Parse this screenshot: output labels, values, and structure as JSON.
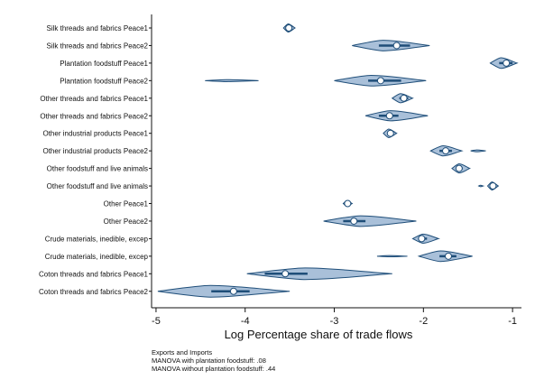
{
  "chart_data": {
    "type": "violin",
    "xlabel": "Log Percentage share of trade flows",
    "xlim": [
      -5.05,
      -0.9
    ],
    "xticks": [
      -5,
      -4,
      -3,
      -2,
      -1
    ],
    "xtick_labels": [
      "-5",
      "-4",
      "-3",
      "-2",
      "-1"
    ],
    "grid": false,
    "colors": {
      "fill": "#a9c0d9",
      "stroke": "#1f4e79",
      "median": "#ffffff"
    },
    "categories": [
      {
        "label": "Silk threads and fabrics Peace1",
        "median": -3.51,
        "q1": -3.54,
        "q3": -3.48,
        "segments": [
          [
            -3.57,
            -3.44,
            0.32
          ]
        ]
      },
      {
        "label": "Silk threads and fabrics Peace2",
        "median": -2.3,
        "q1": -2.5,
        "q3": -2.15,
        "segments": [
          [
            -2.8,
            -1.93,
            0.42
          ]
        ]
      },
      {
        "label": "Plantation foodstuff Peace1",
        "median": -1.07,
        "q1": -1.15,
        "q3": -1.0,
        "segments": [
          [
            -1.25,
            -0.95,
            0.42
          ]
        ]
      },
      {
        "label": "Plantation foodstuff Peace2",
        "median": -2.48,
        "q1": -2.62,
        "q3": -2.25,
        "segments": [
          [
            -4.45,
            -3.85,
            0.08
          ],
          [
            -3.0,
            -1.97,
            0.42
          ]
        ]
      },
      {
        "label": "Other threads and fabrics Peace1",
        "median": -2.22,
        "q1": -2.27,
        "q3": -2.17,
        "segments": [
          [
            -2.35,
            -2.12,
            0.36
          ]
        ]
      },
      {
        "label": "Other threads and fabrics Peace2",
        "median": -2.38,
        "q1": -2.5,
        "q3": -2.28,
        "segments": [
          [
            -2.65,
            -1.95,
            0.4
          ]
        ]
      },
      {
        "label": "Other industrial products Peace1",
        "median": -2.37,
        "q1": -2.4,
        "q3": -2.34,
        "segments": [
          [
            -2.45,
            -2.3,
            0.34
          ]
        ]
      },
      {
        "label": "Other industrial products Peace2",
        "median": -1.75,
        "q1": -1.82,
        "q3": -1.68,
        "segments": [
          [
            -1.92,
            -1.57,
            0.4
          ],
          [
            -1.47,
            -1.3,
            0.07
          ]
        ]
      },
      {
        "label": "Other foodstuff and live animals",
        "median": -1.6,
        "q1": -1.63,
        "q3": -1.56,
        "segments": [
          [
            -1.68,
            -1.48,
            0.36
          ]
        ]
      },
      {
        "label": "Other foodstuff and live animals",
        "median": -1.22,
        "q1": -1.24,
        "q3": -1.2,
        "segments": [
          [
            -1.38,
            -1.33,
            0.06
          ],
          [
            -1.28,
            -1.16,
            0.32
          ]
        ]
      },
      {
        "label": "Other Peace1",
        "median": -2.85,
        "q1": -2.87,
        "q3": -2.83,
        "segments": [
          [
            -2.9,
            -2.8,
            0.22
          ]
        ]
      },
      {
        "label": "Other Peace2",
        "median": -2.78,
        "q1": -2.9,
        "q3": -2.65,
        "segments": [
          [
            -3.12,
            -2.08,
            0.42
          ]
        ]
      },
      {
        "label": "Crude materials, inedible, excep",
        "median": -2.02,
        "q1": -2.06,
        "q3": -1.96,
        "segments": [
          [
            -2.12,
            -1.83,
            0.36
          ]
        ]
      },
      {
        "label": "Crude materials, inedible, excep",
        "median": -1.72,
        "q1": -1.82,
        "q3": -1.63,
        "segments": [
          [
            -2.52,
            -2.18,
            0.05
          ],
          [
            -2.05,
            -1.45,
            0.42
          ]
        ]
      },
      {
        "label": "Coton threads and fabrics Peace1",
        "median": -3.55,
        "q1": -3.78,
        "q3": -3.3,
        "segments": [
          [
            -3.98,
            -2.35,
            0.46
          ]
        ]
      },
      {
        "label": "Coton threads and fabrics Peace2",
        "median": -4.13,
        "q1": -4.38,
        "q3": -3.95,
        "segments": [
          [
            -4.98,
            -3.5,
            0.46
          ]
        ]
      }
    ],
    "notes": [
      "Exports and Imports",
      "MANOVA with plantation foodstuff: .08",
      "MANOVA without plantation foodstuff: .44"
    ]
  }
}
